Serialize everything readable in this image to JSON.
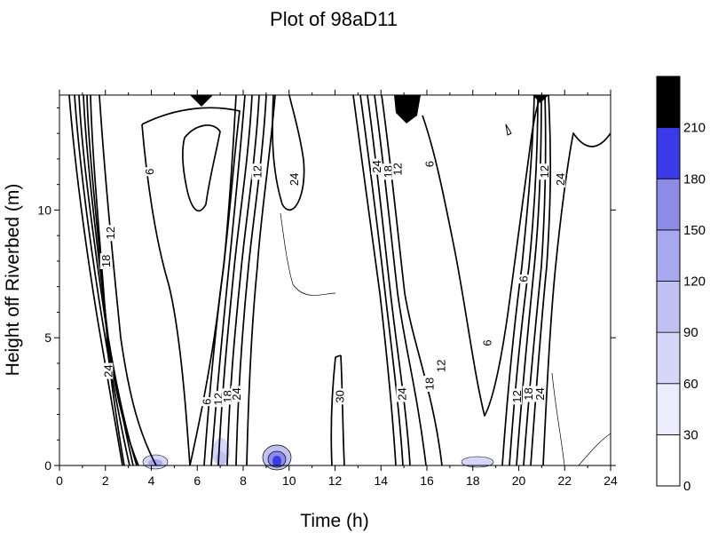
{
  "chart_data": {
    "type": "heatmap",
    "subtype": "contour",
    "title": "Plot of 98aD11",
    "xlabel": "Time (h)",
    "ylabel": "Height off Riverbed (m)",
    "xlim": [
      0,
      24
    ],
    "ylim": [
      0,
      14.5
    ],
    "x_ticks": [
      0,
      2,
      4,
      6,
      8,
      10,
      12,
      14,
      16,
      18,
      20,
      22,
      24
    ],
    "y_ticks": [
      0,
      5,
      10
    ],
    "colorbar": {
      "levels": [
        0,
        30,
        60,
        90,
        120,
        150,
        180,
        210
      ],
      "labels": [
        "0",
        "30",
        "60",
        "90",
        "120",
        "150",
        "180",
        "210"
      ],
      "colors": [
        "#ffffff",
        "#ececfc",
        "#d6d6f8",
        "#c0c0f2",
        "#a8a8ee",
        "#8c8ce8",
        "#3a3ae8",
        "#000000"
      ]
    },
    "contour_labels": [
      {
        "text": "6",
        "x": 3.9,
        "y": 11.5
      },
      {
        "text": "12",
        "x": 2.2,
        "y": 9.1
      },
      {
        "text": "18",
        "x": 2.0,
        "y": 8.0
      },
      {
        "text": "24",
        "x": 2.1,
        "y": 3.7
      },
      {
        "text": "6",
        "x": 6.4,
        "y": 2.5
      },
      {
        "text": "12",
        "x": 6.9,
        "y": 2.6
      },
      {
        "text": "18",
        "x": 7.3,
        "y": 2.7
      },
      {
        "text": "24",
        "x": 7.7,
        "y": 2.8
      },
      {
        "text": "12",
        "x": 8.6,
        "y": 11.5
      },
      {
        "text": "24",
        "x": 10.2,
        "y": 11.2
      },
      {
        "text": "30",
        "x": 12.2,
        "y": 2.7
      },
      {
        "text": "24",
        "x": 13.8,
        "y": 11.7
      },
      {
        "text": "18",
        "x": 14.3,
        "y": 11.5
      },
      {
        "text": "12",
        "x": 14.7,
        "y": 11.6
      },
      {
        "text": "6",
        "x": 16.1,
        "y": 11.8
      },
      {
        "text": "24",
        "x": 14.9,
        "y": 2.8
      },
      {
        "text": "18",
        "x": 16.1,
        "y": 3.2
      },
      {
        "text": "12",
        "x": 16.6,
        "y": 3.9
      },
      {
        "text": "6",
        "x": 18.6,
        "y": 4.8
      },
      {
        "text": "6",
        "x": 20.2,
        "y": 7.3
      },
      {
        "text": "12",
        "x": 19.9,
        "y": 2.7
      },
      {
        "text": "18",
        "x": 20.4,
        "y": 2.8
      },
      {
        "text": "24",
        "x": 20.9,
        "y": 2.8
      },
      {
        "text": "12",
        "x": 21.1,
        "y": 11.5
      },
      {
        "text": "24",
        "x": 21.8,
        "y": 11.2
      }
    ]
  }
}
